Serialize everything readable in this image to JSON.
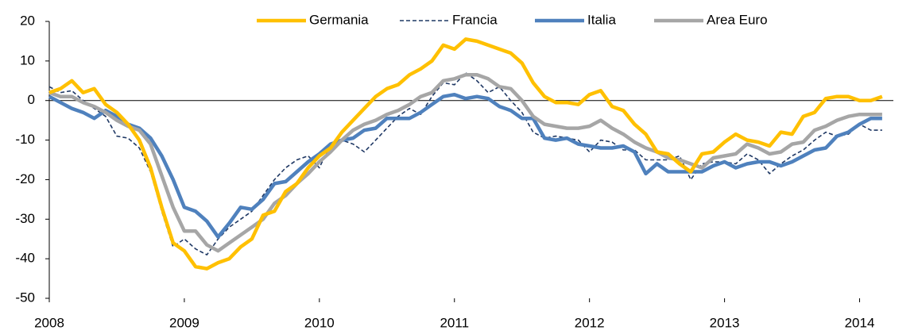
{
  "chart_data": {
    "type": "line",
    "x": [
      2008,
      2008.083,
      2008.167,
      2008.25,
      2008.333,
      2008.417,
      2008.5,
      2008.583,
      2008.667,
      2008.75,
      2008.833,
      2008.917,
      2009,
      2009.083,
      2009.167,
      2009.25,
      2009.333,
      2009.417,
      2009.5,
      2009.583,
      2009.667,
      2009.75,
      2009.833,
      2009.917,
      2010,
      2010.083,
      2010.167,
      2010.25,
      2010.333,
      2010.417,
      2010.5,
      2010.583,
      2010.667,
      2010.75,
      2010.833,
      2010.917,
      2011,
      2011.083,
      2011.167,
      2011.25,
      2011.333,
      2011.417,
      2011.5,
      2011.583,
      2011.667,
      2011.75,
      2011.833,
      2011.917,
      2012,
      2012.083,
      2012.167,
      2012.25,
      2012.333,
      2012.417,
      2012.5,
      2012.583,
      2012.667,
      2012.75,
      2012.833,
      2012.917,
      2013,
      2013.083,
      2013.167,
      2013.25,
      2013.333,
      2013.417,
      2013.5,
      2013.583,
      2013.667,
      2013.75,
      2013.833,
      2013.917,
      2014,
      2014.083,
      2014.167
    ],
    "series": [
      {
        "name": "Germania",
        "color": "#ffc000",
        "dashed": false,
        "values": [
          2,
          3,
          5,
          2,
          3,
          -1,
          -3,
          -6,
          -10,
          -17,
          -27,
          -36,
          -38,
          -42,
          -42.5,
          -41,
          -40,
          -37,
          -35,
          -29,
          -28,
          -23,
          -21,
          -17,
          -14,
          -12,
          -8,
          -5,
          -2,
          1,
          3,
          4,
          6.5,
          8,
          10,
          14,
          13,
          15.5,
          15,
          14,
          13,
          12,
          9.5,
          4.5,
          1,
          -0.5,
          -0.5,
          -1,
          1.5,
          2.5,
          -1.5,
          -2.5,
          -6,
          -8.5,
          -13,
          -13.5,
          -16,
          -18,
          -13.5,
          -13,
          -10.5,
          -8.5,
          -10,
          -10.5,
          -11.5,
          -8,
          -8.5,
          -4,
          -3,
          0.5,
          1,
          1,
          0,
          0,
          1
        ]
      },
      {
        "name": "Francia",
        "color": "#1f3864",
        "dashed": true,
        "values": [
          3.5,
          2,
          2.5,
          0,
          -2,
          -4,
          -9,
          -9.5,
          -12,
          -18,
          -28,
          -37,
          -35,
          -37.5,
          -39,
          -35,
          -32,
          -30,
          -28,
          -24,
          -20,
          -17,
          -15,
          -14,
          -17,
          -11,
          -10,
          -11,
          -13,
          -10,
          -7,
          -4,
          -2,
          -3.5,
          1,
          4.5,
          4,
          7,
          5,
          2,
          3.5,
          0,
          -3,
          -8,
          -9.5,
          -9,
          -9.5,
          -10,
          -13,
          -10,
          -10.5,
          -12.5,
          -12.5,
          -15,
          -15,
          -15,
          -14,
          -20,
          -16,
          -15.5,
          -15.5,
          -16,
          -13.5,
          -15,
          -18.5,
          -16,
          -14,
          -12.5,
          -10,
          -8,
          -9,
          -8.5,
          -6,
          -7.5,
          -7.5
        ]
      },
      {
        "name": "Italia",
        "color": "#4f81bd",
        "dashed": false,
        "values": [
          1,
          -0.5,
          -2,
          -3,
          -4.5,
          -2.5,
          -4,
          -6,
          -7,
          -9.5,
          -14,
          -20,
          -27,
          -28,
          -30.5,
          -34.5,
          -31,
          -27,
          -27.5,
          -25,
          -21,
          -20.5,
          -18,
          -15.5,
          -13.5,
          -11,
          -10,
          -9.5,
          -7.5,
          -7,
          -4.5,
          -4.5,
          -4.5,
          -3,
          -1,
          1,
          1.5,
          0.5,
          1,
          0.5,
          -1.5,
          -2.5,
          -4.5,
          -4.5,
          -9.5,
          -10,
          -9.5,
          -11,
          -11.5,
          -12,
          -12,
          -11.5,
          -13,
          -18.5,
          -16,
          -18,
          -18,
          -18,
          -18,
          -16.5,
          -15.5,
          -17,
          -16,
          -15.5,
          -15.5,
          -16.5,
          -15.5,
          -14,
          -12.5,
          -12,
          -9,
          -8,
          -6,
          -4.5,
          -4.5
        ]
      },
      {
        "name": "Area Euro",
        "color": "#a6a6a6",
        "dashed": false,
        "values": [
          2,
          1,
          1,
          -0.5,
          -1.5,
          -3,
          -5,
          -6.5,
          -7.5,
          -11,
          -19,
          -27,
          -33,
          -33,
          -36.5,
          -38,
          -36,
          -34,
          -32,
          -30,
          -26,
          -24,
          -21,
          -18.5,
          -15.5,
          -13,
          -10,
          -7.5,
          -6,
          -5,
          -3.5,
          -2.5,
          -1,
          1,
          2,
          5,
          5.5,
          6.5,
          6.5,
          5.5,
          3.5,
          3,
          0,
          -4,
          -6,
          -6.5,
          -7,
          -7,
          -6.5,
          -5,
          -7,
          -8.5,
          -10.5,
          -12,
          -13,
          -14.5,
          -15,
          -16,
          -17,
          -14.5,
          -14,
          -13.5,
          -11,
          -12,
          -13.5,
          -13,
          -11,
          -10.5,
          -7.5,
          -6.5,
          -5,
          -4,
          -3.5,
          -3.5,
          -3.5
        ]
      }
    ],
    "xlim": [
      2008,
      2014.25
    ],
    "xticks": [
      2008,
      2009,
      2010,
      2011,
      2012,
      2013,
      2014
    ],
    "ylim": [
      -50,
      20
    ],
    "yticks": [
      -50,
      -40,
      -30,
      -20,
      -10,
      0,
      10,
      20
    ],
    "legend": "top"
  }
}
